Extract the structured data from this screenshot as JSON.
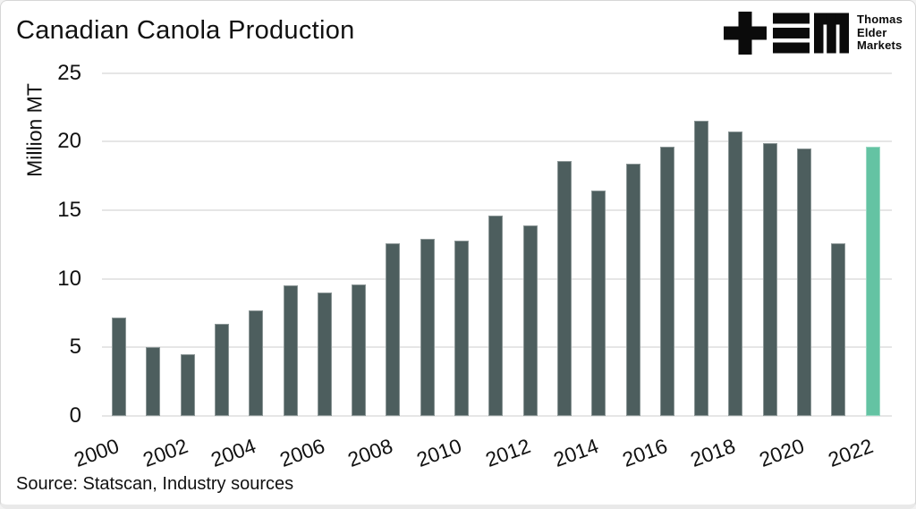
{
  "header": {
    "title": "Canadian Canola Production",
    "logo": {
      "mark": "TEM monogram (plus, triple-bar, block-M)",
      "brand_lines": [
        "Thomas",
        "Elder",
        "Markets"
      ]
    }
  },
  "footer": {
    "source": "Source: Statscan, Industry sources"
  },
  "chart_data": {
    "type": "bar",
    "title": "Canadian Canola Production",
    "xlabel": "",
    "ylabel": "Million MT",
    "ylim": [
      0,
      25
    ],
    "yticks": [
      0,
      5,
      10,
      15,
      20,
      25
    ],
    "grid": "horizontal gridlines on",
    "legend": "none",
    "categories": [
      "2000",
      "2001",
      "2002",
      "2003",
      "2004",
      "2005",
      "2006",
      "2007",
      "2008",
      "2009",
      "2010",
      "2011",
      "2012",
      "2013",
      "2014",
      "2015",
      "2016",
      "2017",
      "2018",
      "2019",
      "2020",
      "2021",
      "2022"
    ],
    "values": [
      7.2,
      5.0,
      4.5,
      6.7,
      7.7,
      9.5,
      9.0,
      9.6,
      12.6,
      12.9,
      12.8,
      14.6,
      13.9,
      18.6,
      16.4,
      18.4,
      19.6,
      21.5,
      20.7,
      19.9,
      19.5,
      12.6,
      19.6
    ],
    "xtick_labels": [
      "2000",
      "2002",
      "2004",
      "2006",
      "2008",
      "2010",
      "2012",
      "2014",
      "2016",
      "2018",
      "2020",
      "2022"
    ],
    "highlight_index": 22,
    "highlight_note": "2022 bar highlighted in teal",
    "colors": {
      "bar": "#4d5e5e",
      "highlight": "#64c3a3",
      "gridline": "#e6e6e6",
      "text": "#111111",
      "logo": "#0b0b0b"
    }
  }
}
